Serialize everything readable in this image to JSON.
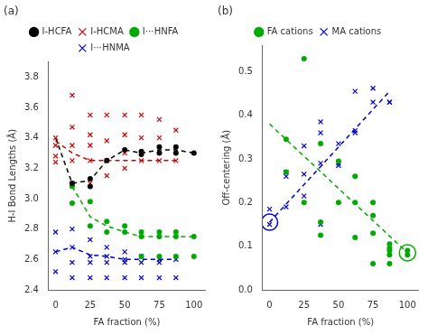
{
  "chart_data": [
    {
      "type": "scatter",
      "title": "(a)",
      "xlabel": "FA fraction (%)",
      "ylabel": "H-I Bond Lengths (Å)",
      "xlim": [
        -5,
        108
      ],
      "ylim": [
        2.4,
        3.9
      ],
      "xticks": [
        0,
        25,
        50,
        75,
        100
      ],
      "yticks": [
        2.4,
        2.6,
        2.8,
        {
          "value": 3.0,
          "label": "3.0"
        },
        3.2,
        3.4,
        3.6,
        3.8
      ],
      "grid": false,
      "legend": "top",
      "series": [
        {
          "name": "I-HCFA",
          "color": "#000000",
          "marker": "circle",
          "x": [
            12,
            25,
            25,
            37,
            50,
            62,
            62,
            75,
            75,
            87,
            87,
            100
          ],
          "values": [
            3.1,
            3.08,
            3.13,
            3.25,
            3.32,
            3.29,
            3.31,
            3.3,
            3.34,
            3.3,
            3.34,
            3.3
          ]
        },
        {
          "name": "I-HCMA",
          "color": "#cc0000",
          "marker": "x",
          "x": [
            0,
            0,
            0,
            0,
            12,
            12,
            12,
            12,
            12,
            25,
            25,
            25,
            25,
            25,
            37,
            37,
            37,
            37,
            50,
            50,
            50,
            50,
            62,
            62,
            62,
            75,
            75,
            75,
            87,
            87
          ],
          "values": [
            3.4,
            3.35,
            3.28,
            3.24,
            3.68,
            3.47,
            3.35,
            3.25,
            3.1,
            3.55,
            3.42,
            3.35,
            3.25,
            3.1,
            3.55,
            3.38,
            3.25,
            3.15,
            3.55,
            3.42,
            3.3,
            3.2,
            3.55,
            3.4,
            3.25,
            3.52,
            3.4,
            3.25,
            3.45,
            3.25
          ]
        },
        {
          "name": "I⋯HNFA",
          "color": "#00aa00",
          "marker": "circle",
          "x": [
            12,
            12,
            25,
            25,
            37,
            37,
            50,
            50,
            62,
            62,
            62,
            75,
            75,
            75,
            87,
            87,
            87,
            100,
            100
          ],
          "values": [
            3.08,
            2.97,
            2.98,
            2.82,
            2.85,
            2.78,
            2.82,
            2.78,
            2.78,
            2.75,
            2.62,
            2.78,
            2.75,
            2.62,
            2.78,
            2.75,
            2.62,
            2.75,
            2.62
          ]
        },
        {
          "name": "I⋯HNMA",
          "color": "#0000cc",
          "marker": "x",
          "x": [
            0,
            0,
            0,
            12,
            12,
            12,
            12,
            25,
            25,
            25,
            25,
            37,
            37,
            37,
            37,
            50,
            50,
            50,
            50,
            62,
            62,
            62,
            75,
            75,
            75,
            87,
            87
          ],
          "values": [
            2.78,
            2.65,
            2.52,
            2.8,
            2.68,
            2.58,
            2.48,
            2.73,
            2.62,
            2.58,
            2.48,
            2.68,
            2.62,
            2.58,
            2.48,
            2.65,
            2.6,
            2.58,
            2.48,
            2.62,
            2.58,
            2.48,
            2.6,
            2.58,
            2.48,
            2.6,
            2.48
          ]
        },
        {
          "type": "line",
          "line_style": "dashed",
          "color": "#000000",
          "x": [
            0,
            12,
            25,
            37,
            50,
            62,
            75,
            87,
            100
          ],
          "values": [
            3.4,
            3.1,
            3.12,
            3.25,
            3.32,
            3.3,
            3.32,
            3.32,
            3.3
          ]
        },
        {
          "type": "line",
          "line_style": "dashed",
          "color": "#cc0000",
          "x": [
            0,
            12,
            25,
            37,
            50,
            62,
            75,
            87
          ],
          "values": [
            3.38,
            3.3,
            3.25,
            3.25,
            3.25,
            3.25,
            3.25,
            3.25
          ]
        },
        {
          "type": "line",
          "line_style": "dashed",
          "color": "#00aa00",
          "x": [
            12,
            25,
            37,
            50,
            62,
            75,
            87,
            100
          ],
          "values": [
            3.08,
            2.88,
            2.82,
            2.78,
            2.75,
            2.75,
            2.75,
            2.75
          ]
        },
        {
          "type": "line",
          "line_style": "dashed",
          "color": "#0000cc",
          "x": [
            0,
            12,
            25,
            37,
            50,
            62,
            75,
            87
          ],
          "values": [
            2.65,
            2.68,
            2.63,
            2.62,
            2.6,
            2.6,
            2.6,
            2.6
          ]
        }
      ]
    },
    {
      "type": "scatter",
      "title": "(b)",
      "xlabel": "FA fraction (%)",
      "ylabel": "Off-centering (Å)",
      "xlim": [
        -5,
        108
      ],
      "ylim": [
        0,
        0.56
      ],
      "xticks": [
        0,
        25,
        50,
        75,
        100
      ],
      "yticks": [
        {
          "value": 0.0,
          "label": "0.0"
        },
        0.1,
        0.2,
        0.3,
        0.4,
        0.5
      ],
      "grid": false,
      "legend": "top",
      "series": [
        {
          "name": "FA cations",
          "color": "#00aa00",
          "marker": "circle",
          "x": [
            12,
            12,
            25,
            25,
            37,
            37,
            37,
            50,
            50,
            62,
            62,
            62,
            75,
            75,
            75,
            75,
            87,
            87,
            87,
            87,
            87,
            100,
            100
          ],
          "values": [
            0.345,
            0.27,
            0.53,
            0.2,
            0.335,
            0.155,
            0.125,
            0.295,
            0.2,
            0.26,
            0.2,
            0.12,
            0.2,
            0.17,
            0.13,
            0.06,
            0.105,
            0.095,
            0.09,
            0.08,
            0.06,
            0.09,
            0.08
          ]
        },
        {
          "name": "MA cations",
          "color": "#0000cc",
          "marker": "x",
          "x": [
            0,
            0,
            12,
            12,
            12,
            25,
            25,
            25,
            37,
            37,
            37,
            37,
            50,
            50,
            50,
            62,
            62,
            62,
            75,
            75,
            87,
            87
          ],
          "values": [
            0.15,
            0.185,
            0.27,
            0.26,
            0.19,
            0.33,
            0.265,
            0.215,
            0.385,
            0.36,
            0.29,
            0.15,
            0.335,
            0.285,
            0.29,
            0.455,
            0.36,
            0.365,
            0.462,
            0.43,
            0.43,
            0.43
          ]
        },
        {
          "marker": "ring",
          "color": "#0000cc",
          "x": [
            0
          ],
          "values": [
            0.155
          ]
        },
        {
          "marker": "ring",
          "color": "#00aa00",
          "x": [
            100
          ],
          "values": [
            0.085
          ]
        },
        {
          "type": "line",
          "line_style": "dashed",
          "color": "#00aa00",
          "x": [
            0,
            100
          ],
          "values": [
            0.38,
            0.085
          ]
        },
        {
          "type": "line",
          "line_style": "dashed",
          "color": "#0000cc",
          "x": [
            0,
            87
          ],
          "values": [
            0.155,
            0.455
          ]
        }
      ]
    }
  ]
}
